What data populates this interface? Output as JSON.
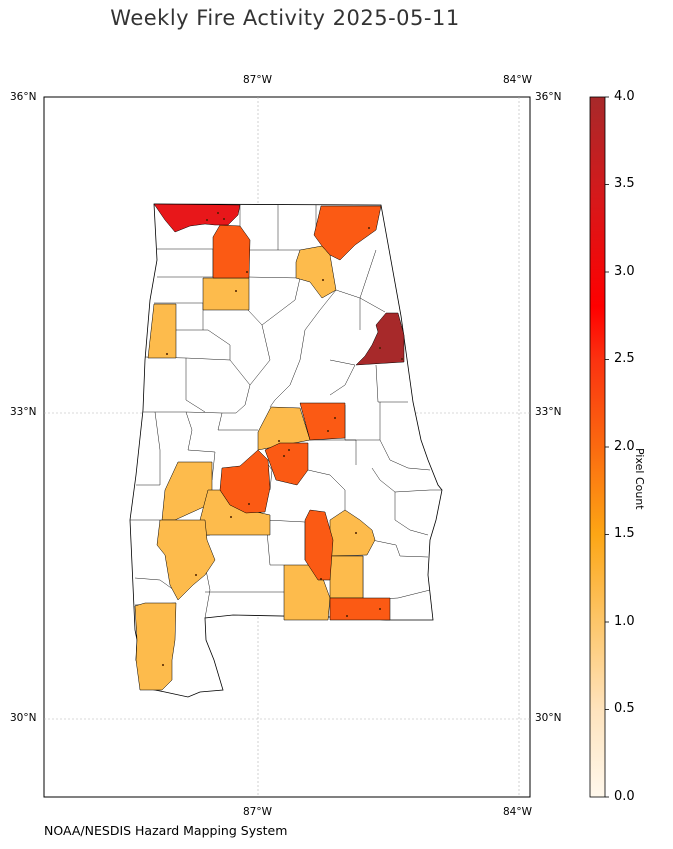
{
  "title": "Weekly Fire Activity 2025-05-11",
  "credit": "NOAA/NESDIS Hazard Mapping System",
  "map": {
    "region": "Alabama counties",
    "lon_labels": [
      "87°W",
      "84°W"
    ],
    "lat_labels": [
      "36°N",
      "33°N",
      "30°N"
    ],
    "gridlines": true
  },
  "colorbar": {
    "label": "Pixel Count",
    "ticks": [
      "0.0",
      "0.5",
      "1.0",
      "1.5",
      "2.0",
      "2.5",
      "3.0",
      "3.5",
      "4.0"
    ],
    "min": 0,
    "max": 4,
    "colors": [
      "#fff8ec",
      "#fdd49e",
      "#fdbb54",
      "#fd8d3c",
      "#fc4e2a",
      "#e31a1c",
      "#ff0000",
      "#b22222"
    ]
  },
  "legend_classes": {
    "one": "#fdbb4c",
    "two": "#fb5a14",
    "three_five": "#e8171a",
    "four": "#a7292a"
  }
}
